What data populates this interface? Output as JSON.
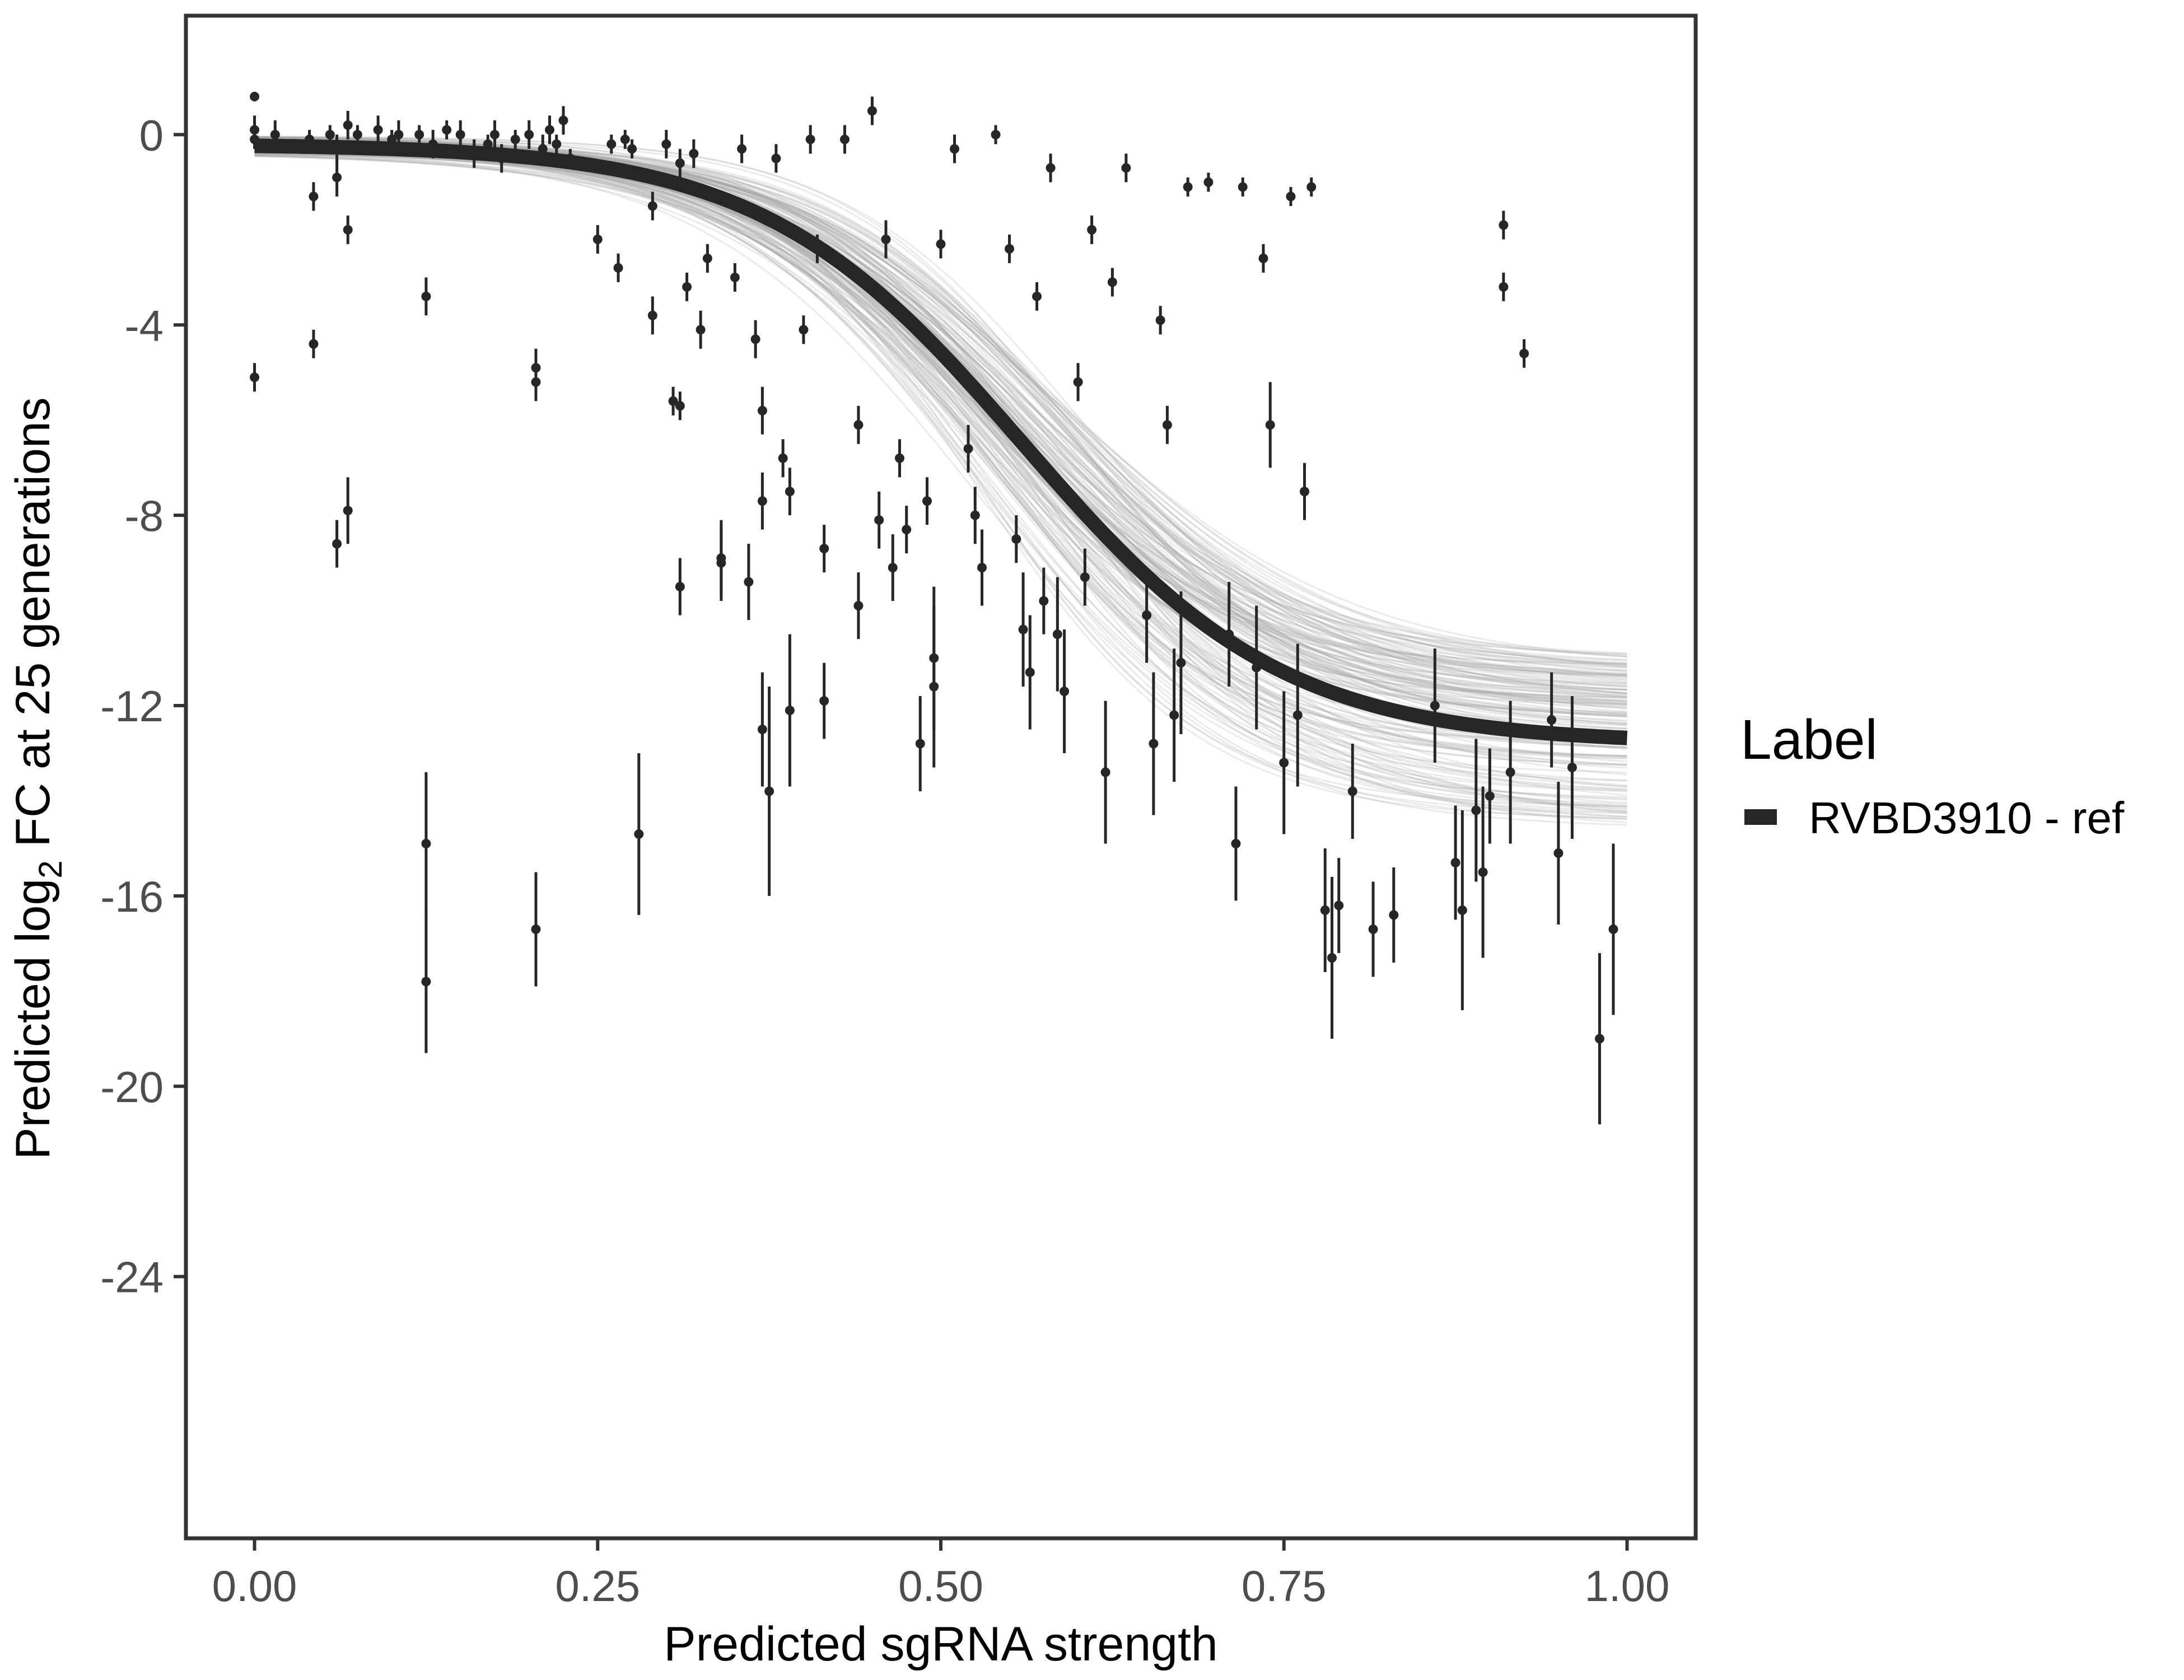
{
  "chart_data": {
    "type": "scatter",
    "xlabel": "Predicted sgRNA strength",
    "ylabel_prefix": "Predicted  log",
    "ylabel_sub": "2",
    "ylabel_suffix": " FC at 25 generations",
    "xlim": [
      -0.05,
      1.05
    ],
    "ylim": [
      -29.5,
      2.5
    ],
    "xticks": [
      0.0,
      0.25,
      0.5,
      0.75,
      1.0
    ],
    "xtick_labels": [
      "0.00",
      "0.25",
      "0.50",
      "0.75",
      "1.00"
    ],
    "yticks": [
      0,
      -4,
      -8,
      -12,
      -16,
      -20,
      -24
    ],
    "ytick_labels": [
      "0",
      "-4",
      "-8",
      "-12",
      "-16",
      "-20",
      "-24"
    ],
    "legend": {
      "title": "Label",
      "entries": [
        {
          "label": "RVBD3910 - ref",
          "color": "#262626"
        }
      ]
    },
    "fit": {
      "model": "logistic",
      "top": -0.2,
      "bottom": -12.8,
      "midpoint": 0.56,
      "scale": 0.095
    },
    "ribbon_spread": 1.8,
    "colors": {
      "point": "#262626",
      "fit_line": "#262626",
      "ribbon": "#a6a6a6",
      "frame": "#333333"
    },
    "points": [
      [
        0.0,
        0.8,
        0.1
      ],
      [
        0.0,
        0.1,
        0.3
      ],
      [
        0.0,
        -0.1,
        0.2
      ],
      [
        0.0,
        -5.1,
        0.3
      ],
      [
        0.015,
        0.0,
        0.3
      ],
      [
        0.04,
        -0.1,
        0.2
      ],
      [
        0.043,
        -1.3,
        0.3
      ],
      [
        0.043,
        -4.4,
        0.3
      ],
      [
        0.055,
        0.0,
        0.2
      ],
      [
        0.06,
        -0.3,
        0.3
      ],
      [
        0.06,
        -0.9,
        0.4
      ],
      [
        0.06,
        -8.6,
        0.5
      ],
      [
        0.068,
        0.2,
        0.3
      ],
      [
        0.068,
        -2.0,
        0.3
      ],
      [
        0.068,
        -7.9,
        0.7
      ],
      [
        0.075,
        0.0,
        0.2
      ],
      [
        0.09,
        0.1,
        0.3
      ],
      [
        0.1,
        -0.1,
        0.2
      ],
      [
        0.105,
        0.0,
        0.3
      ],
      [
        0.12,
        0.0,
        0.2
      ],
      [
        0.125,
        -3.4,
        0.4
      ],
      [
        0.125,
        -14.9,
        1.5
      ],
      [
        0.125,
        -17.8,
        1.5
      ],
      [
        0.13,
        -0.2,
        0.3
      ],
      [
        0.14,
        0.1,
        0.2
      ],
      [
        0.15,
        0.0,
        0.3
      ],
      [
        0.16,
        -0.4,
        0.3
      ],
      [
        0.17,
        -0.2,
        0.2
      ],
      [
        0.175,
        0.0,
        0.3
      ],
      [
        0.18,
        -0.5,
        0.3
      ],
      [
        0.19,
        -0.1,
        0.2
      ],
      [
        0.2,
        0.0,
        0.3
      ],
      [
        0.205,
        -4.9,
        0.4
      ],
      [
        0.205,
        -5.2,
        0.4
      ],
      [
        0.205,
        -16.7,
        1.2
      ],
      [
        0.21,
        -0.3,
        0.3
      ],
      [
        0.215,
        0.1,
        0.3
      ],
      [
        0.22,
        -0.2,
        0.2
      ],
      [
        0.225,
        0.3,
        0.3
      ],
      [
        0.23,
        -0.5,
        0.2
      ],
      [
        0.25,
        -2.2,
        0.3
      ],
      [
        0.26,
        -0.2,
        0.2
      ],
      [
        0.265,
        -2.8,
        0.3
      ],
      [
        0.27,
        -0.1,
        0.2
      ],
      [
        0.275,
        -0.3,
        0.2
      ],
      [
        0.28,
        -14.7,
        1.7
      ],
      [
        0.29,
        -1.5,
        0.3
      ],
      [
        0.29,
        -3.8,
        0.4
      ],
      [
        0.3,
        -0.2,
        0.3
      ],
      [
        0.305,
        -5.6,
        0.3
      ],
      [
        0.31,
        -0.6,
        0.3
      ],
      [
        0.31,
        -5.7,
        0.3
      ],
      [
        0.31,
        -9.5,
        0.6
      ],
      [
        0.315,
        -3.2,
        0.3
      ],
      [
        0.32,
        -0.4,
        0.3
      ],
      [
        0.325,
        -4.1,
        0.4
      ],
      [
        0.33,
        -2.6,
        0.3
      ],
      [
        0.34,
        -9.0,
        0.8
      ],
      [
        0.34,
        -8.9,
        0.8
      ],
      [
        0.35,
        -3.0,
        0.3
      ],
      [
        0.355,
        -0.3,
        0.3
      ],
      [
        0.36,
        -9.4,
        0.8
      ],
      [
        0.365,
        -4.3,
        0.4
      ],
      [
        0.37,
        -5.8,
        0.5
      ],
      [
        0.37,
        -7.7,
        0.6
      ],
      [
        0.37,
        -12.5,
        1.2
      ],
      [
        0.375,
        -13.8,
        2.2
      ],
      [
        0.38,
        -0.5,
        0.3
      ],
      [
        0.385,
        -6.8,
        0.4
      ],
      [
        0.39,
        -7.5,
        0.5
      ],
      [
        0.39,
        -12.1,
        1.6
      ],
      [
        0.4,
        -4.1,
        0.3
      ],
      [
        0.405,
        -0.1,
        0.3
      ],
      [
        0.41,
        -2.4,
        0.3
      ],
      [
        0.415,
        -8.7,
        0.5
      ],
      [
        0.415,
        -11.9,
        0.8
      ],
      [
        0.43,
        -0.1,
        0.3
      ],
      [
        0.44,
        -9.9,
        0.7
      ],
      [
        0.44,
        -6.1,
        0.4
      ],
      [
        0.45,
        0.5,
        0.3
      ],
      [
        0.455,
        -8.1,
        0.6
      ],
      [
        0.46,
        -2.2,
        0.4
      ],
      [
        0.465,
        -9.1,
        0.7
      ],
      [
        0.47,
        -6.8,
        0.4
      ],
      [
        0.475,
        -8.3,
        0.5
      ],
      [
        0.485,
        -12.8,
        1.0
      ],
      [
        0.49,
        -7.7,
        0.5
      ],
      [
        0.495,
        -11.0,
        1.5
      ],
      [
        0.495,
        -11.6,
        1.7
      ],
      [
        0.5,
        -2.3,
        0.3
      ],
      [
        0.51,
        -0.3,
        0.3
      ],
      [
        0.52,
        -6.6,
        0.5
      ],
      [
        0.525,
        -8.0,
        0.6
      ],
      [
        0.53,
        -9.1,
        0.8
      ],
      [
        0.54,
        0.0,
        0.2
      ],
      [
        0.55,
        -2.4,
        0.3
      ],
      [
        0.555,
        -8.5,
        0.5
      ],
      [
        0.56,
        -10.4,
        1.2
      ],
      [
        0.565,
        -11.3,
        1.2
      ],
      [
        0.57,
        -3.4,
        0.3
      ],
      [
        0.575,
        -9.8,
        0.7
      ],
      [
        0.58,
        -0.7,
        0.3
      ],
      [
        0.585,
        -10.5,
        1.2
      ],
      [
        0.59,
        -11.7,
        1.3
      ],
      [
        0.6,
        -5.2,
        0.4
      ],
      [
        0.605,
        -9.3,
        0.6
      ],
      [
        0.61,
        -2.0,
        0.3
      ],
      [
        0.62,
        -13.4,
        1.5
      ],
      [
        0.625,
        -3.1,
        0.3
      ],
      [
        0.635,
        -0.7,
        0.3
      ],
      [
        0.65,
        -10.1,
        1.0
      ],
      [
        0.655,
        -12.8,
        1.5
      ],
      [
        0.66,
        -3.9,
        0.3
      ],
      [
        0.665,
        -6.1,
        0.4
      ],
      [
        0.67,
        -12.2,
        1.4
      ],
      [
        0.675,
        -11.1,
        1.5
      ],
      [
        0.68,
        -1.1,
        0.2
      ],
      [
        0.695,
        -1.0,
        0.2
      ],
      [
        0.71,
        -10.5,
        1.1
      ],
      [
        0.715,
        -14.9,
        1.2
      ],
      [
        0.72,
        -1.1,
        0.2
      ],
      [
        0.73,
        -11.2,
        1.3
      ],
      [
        0.735,
        -2.6,
        0.3
      ],
      [
        0.74,
        -6.1,
        0.9
      ],
      [
        0.75,
        -13.2,
        1.5
      ],
      [
        0.755,
        -1.3,
        0.2
      ],
      [
        0.76,
        -12.2,
        1.5
      ],
      [
        0.765,
        -7.5,
        0.6
      ],
      [
        0.77,
        -1.1,
        0.2
      ],
      [
        0.78,
        -16.3,
        1.3
      ],
      [
        0.785,
        -17.3,
        1.7
      ],
      [
        0.79,
        -16.2,
        1.0
      ],
      [
        0.8,
        -13.8,
        1.0
      ],
      [
        0.815,
        -16.7,
        1.0
      ],
      [
        0.83,
        -16.4,
        1.0
      ],
      [
        0.86,
        -12.0,
        1.2
      ],
      [
        0.875,
        -15.3,
        1.2
      ],
      [
        0.88,
        -16.3,
        2.1
      ],
      [
        0.89,
        -14.2,
        1.5
      ],
      [
        0.895,
        -15.5,
        1.8
      ],
      [
        0.9,
        -13.9,
        1.0
      ],
      [
        0.91,
        -1.9,
        0.3
      ],
      [
        0.91,
        -3.2,
        0.3
      ],
      [
        0.915,
        -13.4,
        1.5
      ],
      [
        0.925,
        -4.6,
        0.3
      ],
      [
        0.945,
        -12.3,
        1.0
      ],
      [
        0.95,
        -15.1,
        1.5
      ],
      [
        0.96,
        -13.3,
        1.5
      ],
      [
        0.98,
        -19.0,
        1.8
      ],
      [
        0.99,
        -16.7,
        1.8
      ]
    ]
  }
}
